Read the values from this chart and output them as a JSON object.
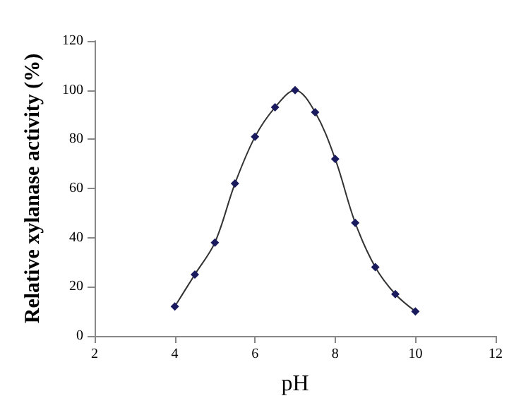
{
  "chart_data": {
    "type": "line",
    "xlabel": "pH",
    "ylabel": "Relative xylanase activity (%)",
    "x": [
      4,
      4.5,
      5,
      5.5,
      6,
      6.5,
      7,
      7.5,
      8,
      8.5,
      9,
      9.5,
      10
    ],
    "series": [
      {
        "color": "#1a1a5e",
        "values": [
          12,
          25,
          38,
          62,
          81,
          93,
          100,
          91,
          72,
          46,
          28,
          17,
          10
        ]
      }
    ],
    "xlim": [
      2,
      12
    ],
    "xticks": [
      2,
      4,
      6,
      8,
      10,
      12
    ],
    "ylim": [
      0,
      120
    ],
    "yticks": [
      0,
      20,
      40,
      60,
      80,
      100,
      120
    ],
    "grid": false,
    "marker": "diamond",
    "line_style": "solid"
  }
}
